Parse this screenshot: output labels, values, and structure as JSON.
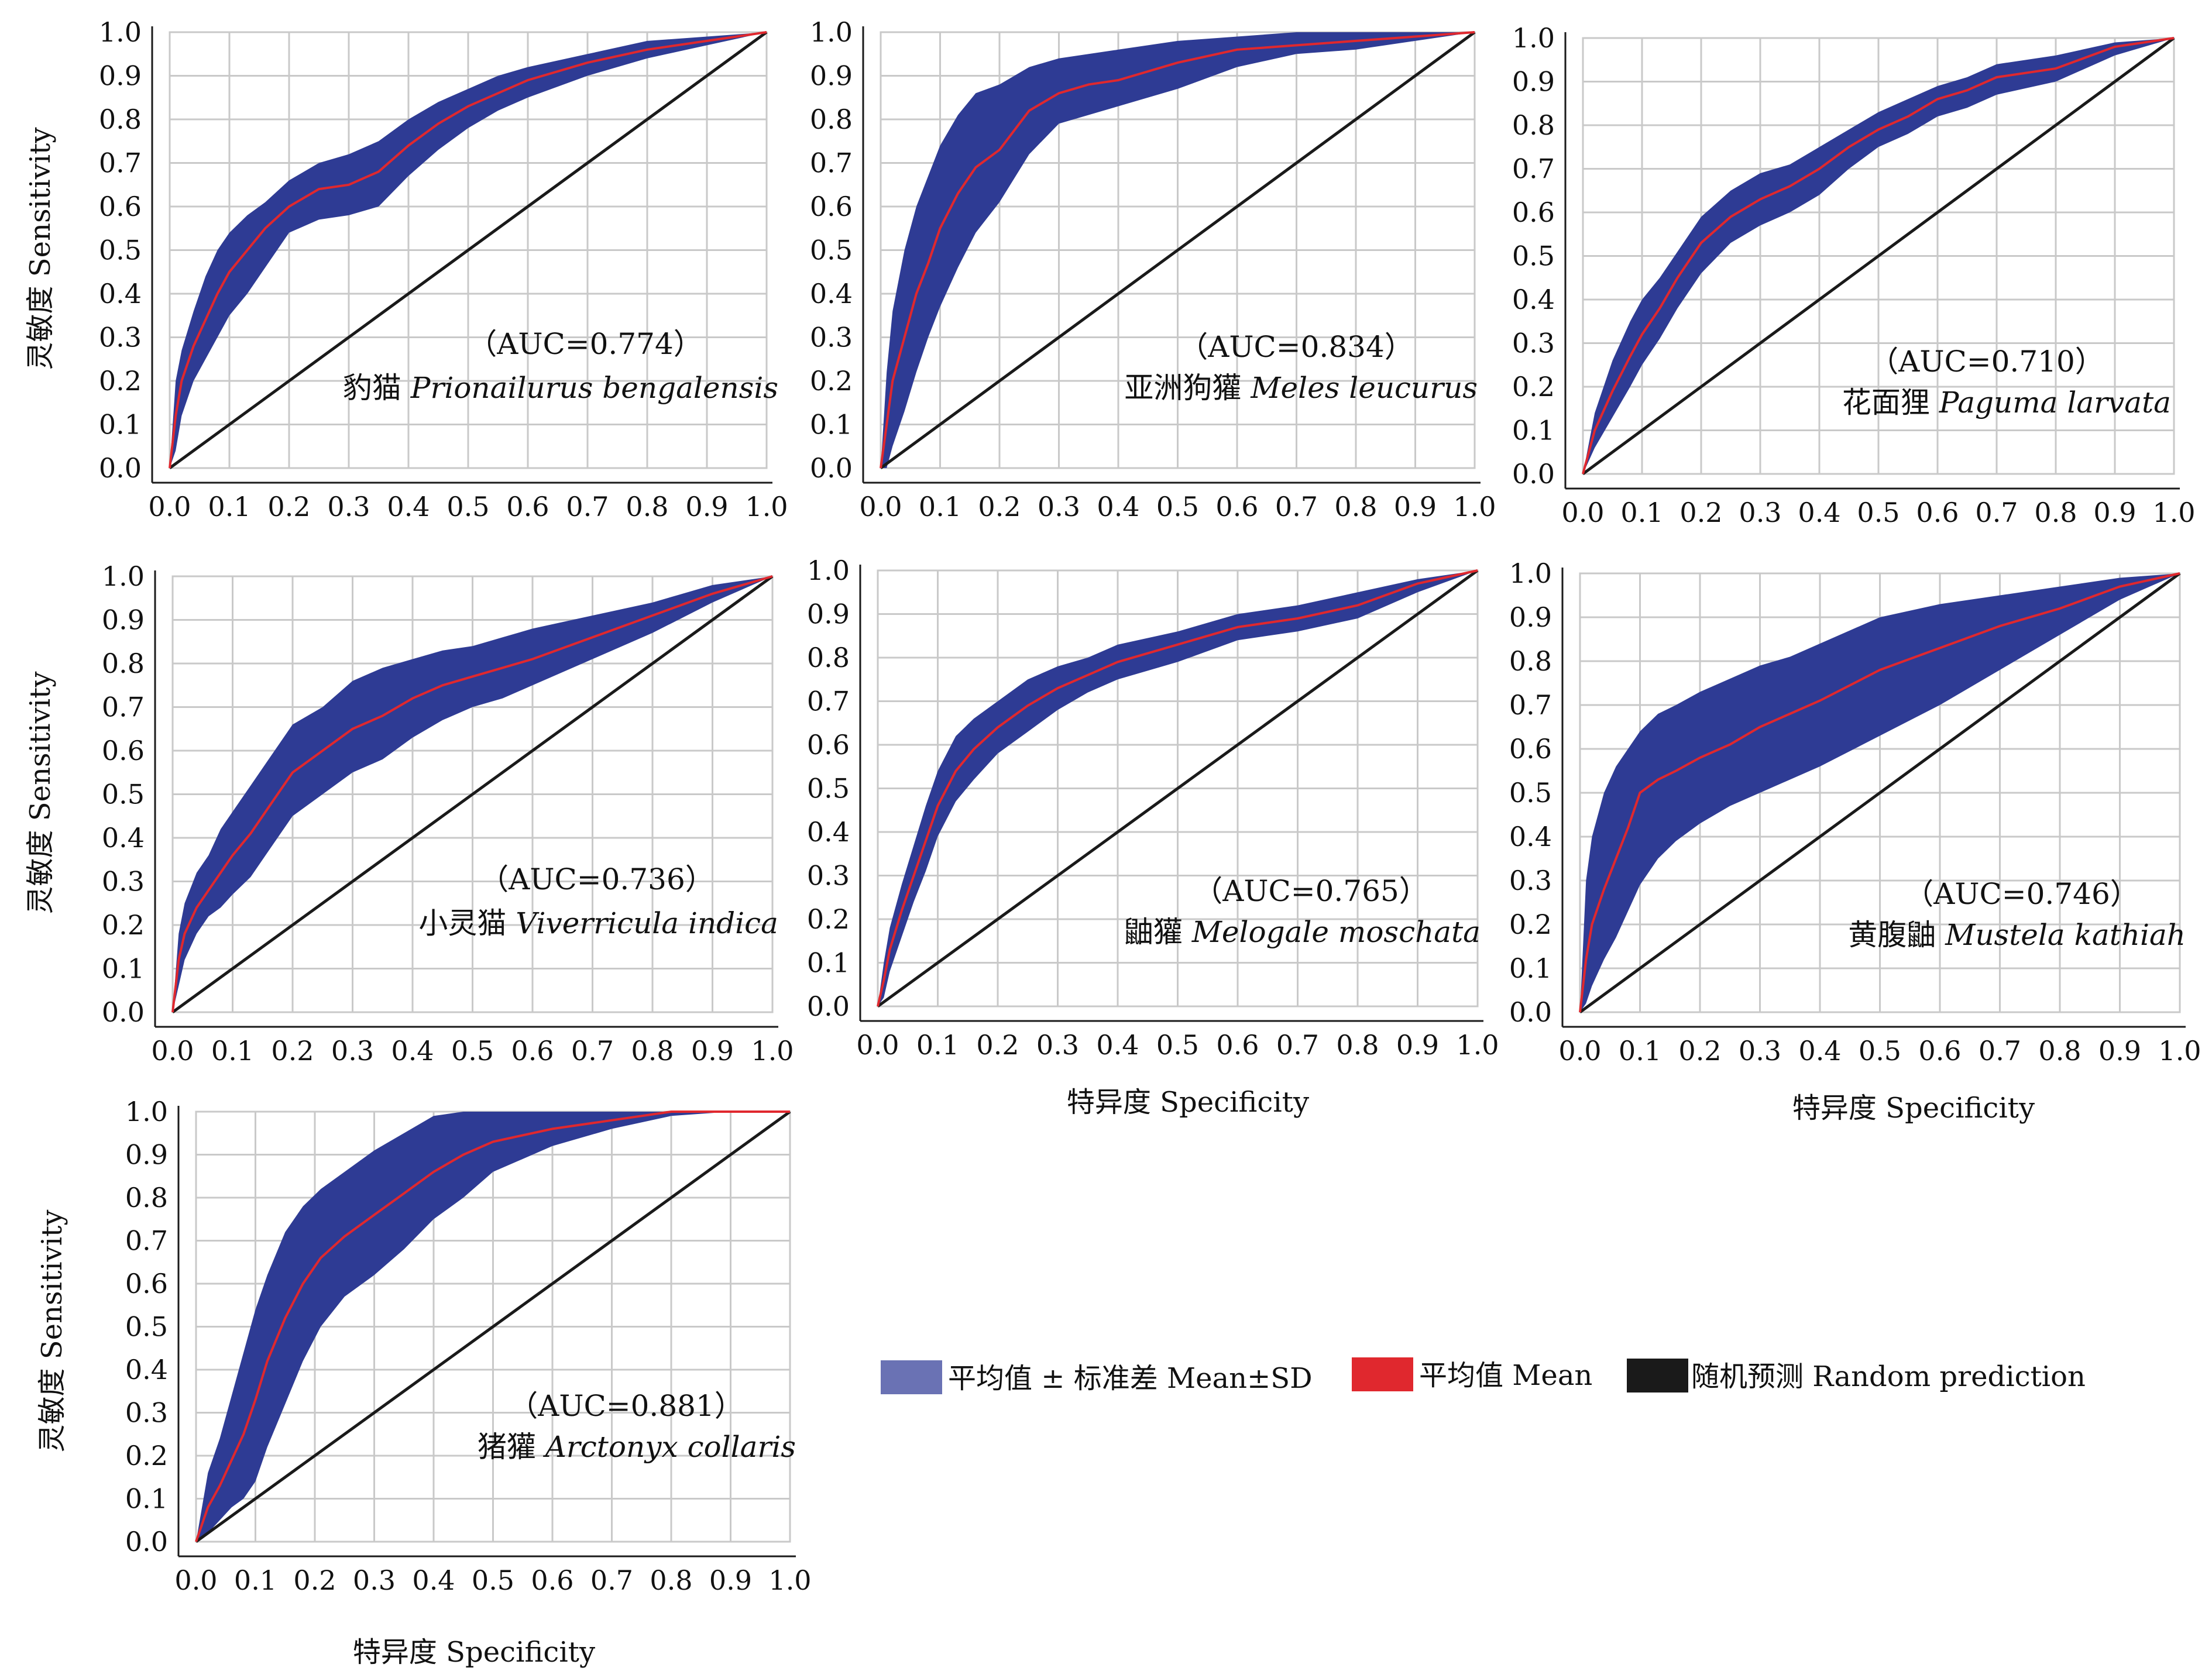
{
  "colors": {
    "band": "#2e3b94",
    "band_legend": "#6a72b4",
    "mean": "#e0282e",
    "random": "#1a1a1a",
    "grid": "#c9c9c9",
    "axis": "#1a1a1a"
  },
  "tick_labels": [
    "0.0",
    "0.1",
    "0.2",
    "0.3",
    "0.4",
    "0.5",
    "0.6",
    "0.7",
    "0.8",
    "0.9",
    "1.0"
  ],
  "ylabel": "灵敏度 Sensitivity",
  "xlabel": "特异度 Specificity",
  "legend": {
    "band": "平均值 ± 标准差 Mean±SD",
    "mean": "平均值 Mean",
    "random": "随机预测 Random prediction"
  },
  "chart_data": [
    {
      "type": "line",
      "auc_label": "（AUC=0.774）",
      "species_cn": "豹猫",
      "species_latin": "Prionailurus bengalensis",
      "xlim": [
        0,
        1
      ],
      "ylim": [
        0,
        1
      ],
      "grid": true,
      "series": [
        {
          "name": "平均值 Mean",
          "x": [
            0,
            0.01,
            0.02,
            0.04,
            0.06,
            0.08,
            0.1,
            0.13,
            0.16,
            0.2,
            0.25,
            0.3,
            0.35,
            0.4,
            0.45,
            0.5,
            0.55,
            0.6,
            0.7,
            0.8,
            0.9,
            1.0
          ],
          "y": [
            0,
            0.12,
            0.2,
            0.28,
            0.34,
            0.4,
            0.45,
            0.5,
            0.55,
            0.6,
            0.64,
            0.65,
            0.68,
            0.74,
            0.79,
            0.83,
            0.86,
            0.89,
            0.93,
            0.96,
            0.98,
            1.0
          ]
        },
        {
          "name": "平均值 ± 标准差 Mean±SD",
          "x": [
            0,
            0.01,
            0.02,
            0.04,
            0.06,
            0.08,
            0.1,
            0.13,
            0.16,
            0.2,
            0.25,
            0.3,
            0.35,
            0.4,
            0.45,
            0.5,
            0.55,
            0.6,
            0.7,
            0.8,
            0.9,
            1.0
          ],
          "y_upper": [
            0,
            0.2,
            0.27,
            0.36,
            0.44,
            0.5,
            0.54,
            0.58,
            0.61,
            0.66,
            0.7,
            0.72,
            0.75,
            0.8,
            0.84,
            0.87,
            0.9,
            0.92,
            0.95,
            0.98,
            0.99,
            1.0
          ],
          "y_lower": [
            0,
            0.04,
            0.12,
            0.2,
            0.25,
            0.3,
            0.35,
            0.4,
            0.46,
            0.54,
            0.57,
            0.58,
            0.6,
            0.67,
            0.73,
            0.78,
            0.82,
            0.85,
            0.9,
            0.94,
            0.97,
            1.0
          ]
        }
      ]
    },
    {
      "type": "line",
      "auc_label": "（AUC=0.834）",
      "species_cn": "亚洲狗獾",
      "species_latin": "Meles leucurus",
      "xlim": [
        0,
        1
      ],
      "ylim": [
        0,
        1
      ],
      "grid": true,
      "series": [
        {
          "name": "平均值 Mean",
          "x": [
            0,
            0.01,
            0.02,
            0.04,
            0.06,
            0.08,
            0.1,
            0.13,
            0.16,
            0.2,
            0.25,
            0.3,
            0.35,
            0.4,
            0.5,
            0.6,
            0.7,
            0.8,
            0.9,
            1.0
          ],
          "y": [
            0,
            0.1,
            0.2,
            0.3,
            0.4,
            0.47,
            0.55,
            0.63,
            0.69,
            0.73,
            0.82,
            0.86,
            0.88,
            0.89,
            0.93,
            0.96,
            0.97,
            0.98,
            0.99,
            1.0
          ]
        },
        {
          "name": "平均值 ± 标准差 Mean±SD",
          "x": [
            0,
            0.01,
            0.02,
            0.04,
            0.06,
            0.08,
            0.1,
            0.13,
            0.16,
            0.2,
            0.25,
            0.3,
            0.35,
            0.4,
            0.5,
            0.6,
            0.7,
            0.8,
            0.9,
            1.0
          ],
          "y_upper": [
            0,
            0.22,
            0.36,
            0.5,
            0.6,
            0.67,
            0.74,
            0.81,
            0.86,
            0.88,
            0.92,
            0.94,
            0.95,
            0.96,
            0.98,
            0.99,
            1.0,
            1.0,
            1.0,
            1.0
          ],
          "y_lower": [
            0,
            0.0,
            0.05,
            0.13,
            0.22,
            0.3,
            0.37,
            0.46,
            0.54,
            0.61,
            0.72,
            0.79,
            0.81,
            0.83,
            0.87,
            0.92,
            0.95,
            0.96,
            0.98,
            1.0
          ]
        }
      ]
    },
    {
      "type": "line",
      "auc_label": "（AUC=0.710）",
      "species_cn": "花面狸",
      "species_latin": "Paguma larvata",
      "xlim": [
        0,
        1
      ],
      "ylim": [
        0,
        1
      ],
      "grid": true,
      "series": [
        {
          "name": "平均值 Mean",
          "x": [
            0,
            0.02,
            0.05,
            0.08,
            0.1,
            0.13,
            0.16,
            0.2,
            0.25,
            0.3,
            0.35,
            0.4,
            0.45,
            0.5,
            0.55,
            0.6,
            0.65,
            0.7,
            0.8,
            0.9,
            1.0
          ],
          "y": [
            0,
            0.1,
            0.19,
            0.27,
            0.32,
            0.38,
            0.45,
            0.53,
            0.59,
            0.63,
            0.66,
            0.7,
            0.75,
            0.79,
            0.82,
            0.86,
            0.88,
            0.91,
            0.93,
            0.98,
            1.0
          ]
        },
        {
          "name": "平均值 ± 标准差 Mean±SD",
          "x": [
            0,
            0.02,
            0.05,
            0.08,
            0.1,
            0.13,
            0.16,
            0.2,
            0.25,
            0.3,
            0.35,
            0.4,
            0.45,
            0.5,
            0.55,
            0.6,
            0.65,
            0.7,
            0.8,
            0.9,
            1.0
          ],
          "y_upper": [
            0,
            0.14,
            0.26,
            0.35,
            0.4,
            0.45,
            0.51,
            0.59,
            0.65,
            0.69,
            0.71,
            0.75,
            0.79,
            0.83,
            0.86,
            0.89,
            0.91,
            0.94,
            0.96,
            0.99,
            1.0
          ],
          "y_lower": [
            0,
            0.06,
            0.13,
            0.2,
            0.25,
            0.31,
            0.38,
            0.46,
            0.53,
            0.57,
            0.6,
            0.64,
            0.7,
            0.75,
            0.78,
            0.82,
            0.84,
            0.87,
            0.9,
            0.96,
            1.0
          ]
        }
      ]
    },
    {
      "type": "line",
      "auc_label": "（AUC=0.736）",
      "species_cn": "小灵猫",
      "species_latin": "Viverricula indica",
      "xlim": [
        0,
        1
      ],
      "ylim": [
        0,
        1
      ],
      "grid": true,
      "series": [
        {
          "name": "平均值 Mean",
          "x": [
            0,
            0.01,
            0.02,
            0.04,
            0.06,
            0.08,
            0.1,
            0.13,
            0.16,
            0.2,
            0.25,
            0.3,
            0.35,
            0.4,
            0.45,
            0.5,
            0.55,
            0.6,
            0.7,
            0.8,
            0.9,
            1.0
          ],
          "y": [
            0,
            0.12,
            0.18,
            0.24,
            0.28,
            0.32,
            0.36,
            0.41,
            0.47,
            0.55,
            0.6,
            0.65,
            0.68,
            0.72,
            0.75,
            0.77,
            0.79,
            0.81,
            0.86,
            0.91,
            0.96,
            1.0
          ]
        },
        {
          "name": "平均值 ± 标准差 Mean±SD",
          "x": [
            0,
            0.01,
            0.02,
            0.04,
            0.06,
            0.08,
            0.1,
            0.13,
            0.16,
            0.2,
            0.25,
            0.3,
            0.35,
            0.4,
            0.45,
            0.5,
            0.55,
            0.6,
            0.7,
            0.8,
            0.9,
            1.0
          ],
          "y_upper": [
            0,
            0.18,
            0.25,
            0.32,
            0.36,
            0.42,
            0.46,
            0.52,
            0.58,
            0.66,
            0.7,
            0.76,
            0.79,
            0.81,
            0.83,
            0.84,
            0.86,
            0.88,
            0.91,
            0.94,
            0.98,
            1.0
          ],
          "y_lower": [
            0,
            0.06,
            0.12,
            0.18,
            0.22,
            0.24,
            0.27,
            0.31,
            0.37,
            0.45,
            0.5,
            0.55,
            0.58,
            0.63,
            0.67,
            0.7,
            0.72,
            0.75,
            0.81,
            0.87,
            0.94,
            1.0
          ]
        }
      ]
    },
    {
      "type": "line",
      "auc_label": "（AUC=0.765）",
      "species_cn": "鼬獾",
      "species_latin": "Melogale moschata",
      "xlim": [
        0,
        1
      ],
      "ylim": [
        0,
        1
      ],
      "grid": true,
      "series": [
        {
          "name": "平均值 Mean",
          "x": [
            0,
            0.01,
            0.02,
            0.04,
            0.06,
            0.08,
            0.1,
            0.13,
            0.16,
            0.2,
            0.25,
            0.3,
            0.35,
            0.4,
            0.5,
            0.6,
            0.7,
            0.8,
            0.9,
            1.0
          ],
          "y": [
            0,
            0.06,
            0.13,
            0.22,
            0.3,
            0.38,
            0.46,
            0.54,
            0.59,
            0.64,
            0.69,
            0.73,
            0.76,
            0.79,
            0.83,
            0.87,
            0.89,
            0.92,
            0.97,
            1.0
          ]
        },
        {
          "name": "平均值 ± 标准差 Mean±SD",
          "x": [
            0,
            0.01,
            0.02,
            0.04,
            0.06,
            0.08,
            0.1,
            0.13,
            0.16,
            0.2,
            0.25,
            0.3,
            0.35,
            0.4,
            0.5,
            0.6,
            0.7,
            0.8,
            0.9,
            1.0
          ],
          "y_upper": [
            0,
            0.1,
            0.18,
            0.28,
            0.37,
            0.46,
            0.54,
            0.62,
            0.66,
            0.7,
            0.75,
            0.78,
            0.8,
            0.83,
            0.86,
            0.9,
            0.92,
            0.95,
            0.98,
            1.0
          ],
          "y_lower": [
            0,
            0.02,
            0.08,
            0.16,
            0.24,
            0.31,
            0.39,
            0.47,
            0.52,
            0.58,
            0.63,
            0.68,
            0.72,
            0.75,
            0.79,
            0.84,
            0.86,
            0.89,
            0.95,
            1.0
          ]
        }
      ]
    },
    {
      "type": "line",
      "auc_label": "（AUC=0.746）",
      "species_cn": "黄腹鼬",
      "species_latin": "Mustela kathiah",
      "xlim": [
        0,
        1
      ],
      "ylim": [
        0,
        1
      ],
      "grid": true,
      "series": [
        {
          "name": "平均值 Mean",
          "x": [
            0,
            0.01,
            0.02,
            0.04,
            0.06,
            0.08,
            0.1,
            0.13,
            0.16,
            0.2,
            0.25,
            0.3,
            0.35,
            0.4,
            0.5,
            0.6,
            0.7,
            0.8,
            0.9,
            1.0
          ],
          "y": [
            0,
            0.12,
            0.2,
            0.28,
            0.35,
            0.42,
            0.5,
            0.53,
            0.55,
            0.58,
            0.61,
            0.65,
            0.68,
            0.71,
            0.78,
            0.83,
            0.88,
            0.92,
            0.97,
            1.0
          ]
        },
        {
          "name": "平均值 ± 标准差 Mean±SD",
          "x": [
            0,
            0.01,
            0.02,
            0.04,
            0.06,
            0.08,
            0.1,
            0.13,
            0.16,
            0.2,
            0.25,
            0.3,
            0.35,
            0.4,
            0.5,
            0.6,
            0.7,
            0.8,
            0.9,
            1.0
          ],
          "y_upper": [
            0,
            0.3,
            0.4,
            0.5,
            0.56,
            0.6,
            0.64,
            0.68,
            0.7,
            0.73,
            0.76,
            0.79,
            0.81,
            0.84,
            0.9,
            0.93,
            0.95,
            0.97,
            0.99,
            1.0
          ],
          "y_lower": [
            0,
            0.02,
            0.06,
            0.12,
            0.17,
            0.23,
            0.29,
            0.35,
            0.39,
            0.43,
            0.47,
            0.5,
            0.53,
            0.56,
            0.63,
            0.7,
            0.78,
            0.86,
            0.94,
            1.0
          ]
        }
      ]
    },
    {
      "type": "line",
      "auc_label": "（AUC=0.881）",
      "species_cn": "猪獾",
      "species_latin": "Arctonyx collaris",
      "xlim": [
        0,
        1
      ],
      "ylim": [
        0,
        1
      ],
      "grid": true,
      "series": [
        {
          "name": "平均值 Mean",
          "x": [
            0,
            0.02,
            0.04,
            0.06,
            0.08,
            0.1,
            0.12,
            0.15,
            0.18,
            0.21,
            0.25,
            0.3,
            0.35,
            0.4,
            0.45,
            0.5,
            0.6,
            0.7,
            0.8,
            0.9,
            1.0
          ],
          "y": [
            0,
            0.08,
            0.13,
            0.19,
            0.25,
            0.33,
            0.42,
            0.52,
            0.6,
            0.66,
            0.71,
            0.76,
            0.81,
            0.86,
            0.9,
            0.93,
            0.96,
            0.98,
            1.0,
            1.0,
            1.0
          ]
        },
        {
          "name": "平均值 ± 标准差 Mean±SD",
          "x": [
            0,
            0.02,
            0.04,
            0.06,
            0.08,
            0.1,
            0.12,
            0.15,
            0.18,
            0.21,
            0.25,
            0.3,
            0.35,
            0.4,
            0.45,
            0.5,
            0.6,
            0.7,
            0.8,
            0.9,
            1.0
          ],
          "y_upper": [
            0,
            0.16,
            0.24,
            0.34,
            0.44,
            0.54,
            0.62,
            0.72,
            0.78,
            0.82,
            0.86,
            0.91,
            0.95,
            0.99,
            1.0,
            1.0,
            1.0,
            1.0,
            1.0,
            1.0,
            1.0
          ],
          "y_lower": [
            0,
            0.02,
            0.05,
            0.08,
            0.1,
            0.14,
            0.22,
            0.32,
            0.42,
            0.5,
            0.57,
            0.62,
            0.68,
            0.75,
            0.8,
            0.86,
            0.92,
            0.96,
            0.99,
            1.0,
            1.0
          ]
        }
      ]
    }
  ]
}
